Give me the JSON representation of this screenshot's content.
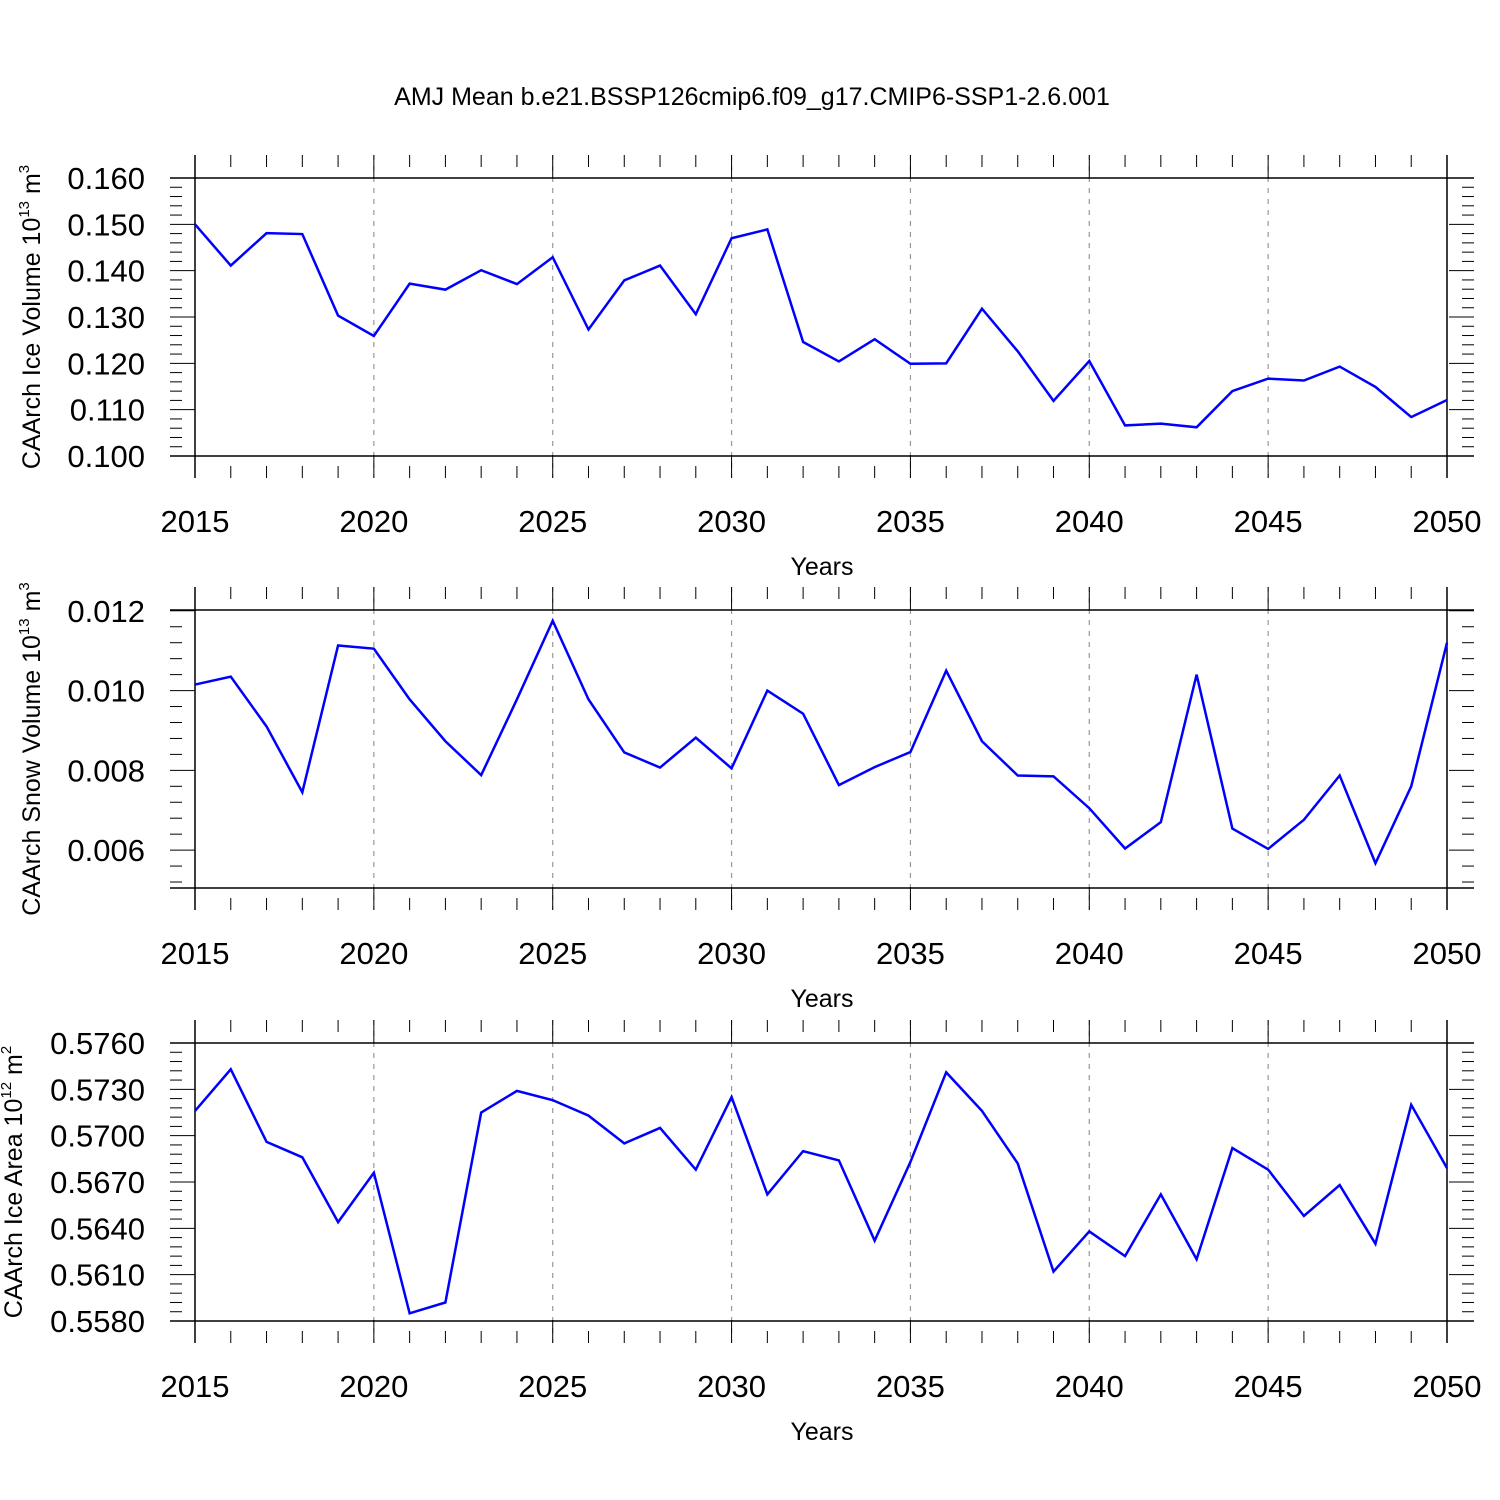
{
  "chart_data": {
    "type": "line",
    "title": "AMJ Mean b.e21.BSSP126cmip6.f09_g17.CMIP6-SSP1-2.6.001",
    "line_color": "#0000ff",
    "grid_color": "#999999",
    "x": [
      2015,
      2016,
      2017,
      2018,
      2019,
      2020,
      2021,
      2022,
      2023,
      2024,
      2025,
      2026,
      2027,
      2028,
      2029,
      2030,
      2031,
      2032,
      2033,
      2034,
      2035,
      2036,
      2037,
      2038,
      2039,
      2040,
      2041,
      2042,
      2043,
      2044,
      2045,
      2046,
      2047,
      2048,
      2049,
      2050
    ],
    "xlim": [
      2015,
      2050
    ],
    "xticks": [
      2015,
      2020,
      2025,
      2030,
      2035,
      2040,
      2045,
      2050
    ],
    "xtick_labels": [
      "2015",
      "2020",
      "2025",
      "2030",
      "2035",
      "2040",
      "2045",
      "2050"
    ],
    "xlabel": "Years",
    "panels": [
      {
        "name": "ice-volume",
        "ylabel_text": "CAArch Ice Volume 10",
        "ylabel_exp": "13",
        "ylabel_unit": "m",
        "ylabel_unit_exp": "3",
        "ylim": [
          0.1,
          0.16
        ],
        "yticks": [
          0.1,
          0.11,
          0.12,
          0.13,
          0.14,
          0.15,
          0.16
        ],
        "ytick_labels": [
          "0.100",
          "0.110",
          "0.120",
          "0.130",
          "0.140",
          "0.150",
          "0.160"
        ],
        "values": [
          0.15,
          0.1411,
          0.1481,
          0.1479,
          0.1303,
          0.1259,
          0.1372,
          0.1359,
          0.1401,
          0.1371,
          0.1429,
          0.1273,
          0.1379,
          0.1411,
          0.1306,
          0.147,
          0.1489,
          0.1246,
          0.1204,
          0.1252,
          0.1199,
          0.12,
          0.1318,
          0.1226,
          0.1119,
          0.1205,
          0.1066,
          0.107,
          0.1062,
          0.114,
          0.1167,
          0.1163,
          0.1193,
          0.1149,
          0.1084,
          0.1121
        ]
      },
      {
        "name": "snow-volume",
        "ylabel_text": "CAArch Snow Volume 10",
        "ylabel_exp": "13",
        "ylabel_unit": "m",
        "ylabel_unit_exp": "3",
        "ylim": [
          0.00505,
          0.01202
        ],
        "yticks": [
          0.006,
          0.008,
          0.01,
          0.012
        ],
        "ytick_labels": [
          "0.006",
          "0.008",
          "0.010",
          "0.012"
        ],
        "values": [
          0.01015,
          0.01035,
          0.0091,
          0.00745,
          0.01113,
          0.01105,
          0.00978,
          0.00873,
          0.00788,
          0.00978,
          0.01175,
          0.00978,
          0.00845,
          0.00807,
          0.00882,
          0.00805,
          0.01,
          0.00942,
          0.00763,
          0.00808,
          0.00846,
          0.0105,
          0.00873,
          0.00787,
          0.00785,
          0.00705,
          0.00604,
          0.0067,
          0.0104,
          0.00654,
          0.00603,
          0.00676,
          0.00787,
          0.00567,
          0.0076,
          0.0112
        ]
      },
      {
        "name": "ice-area",
        "ylabel_text": "CAArch Ice Area 10",
        "ylabel_exp": "12",
        "ylabel_unit": "m",
        "ylabel_unit_exp": "2",
        "ylim": [
          0.558,
          0.576
        ],
        "yticks": [
          0.558,
          0.561,
          0.564,
          0.567,
          0.57,
          0.573,
          0.576
        ],
        "ytick_labels": [
          "0.5580",
          "0.5610",
          "0.5640",
          "0.5670",
          "0.5700",
          "0.5730",
          "0.5760"
        ],
        "values": [
          0.5716,
          0.5743,
          0.5696,
          0.5686,
          0.5644,
          0.5676,
          0.5585,
          0.5592,
          0.5715,
          0.5729,
          0.5723,
          0.5713,
          0.5695,
          0.5705,
          0.5678,
          0.5725,
          0.5662,
          0.569,
          0.5684,
          0.5632,
          0.5683,
          0.5741,
          0.5716,
          0.5682,
          0.5612,
          0.5638,
          0.5622,
          0.5662,
          0.562,
          0.5692,
          0.5678,
          0.5648,
          0.5668,
          0.563,
          0.572,
          0.5679
        ]
      }
    ]
  }
}
